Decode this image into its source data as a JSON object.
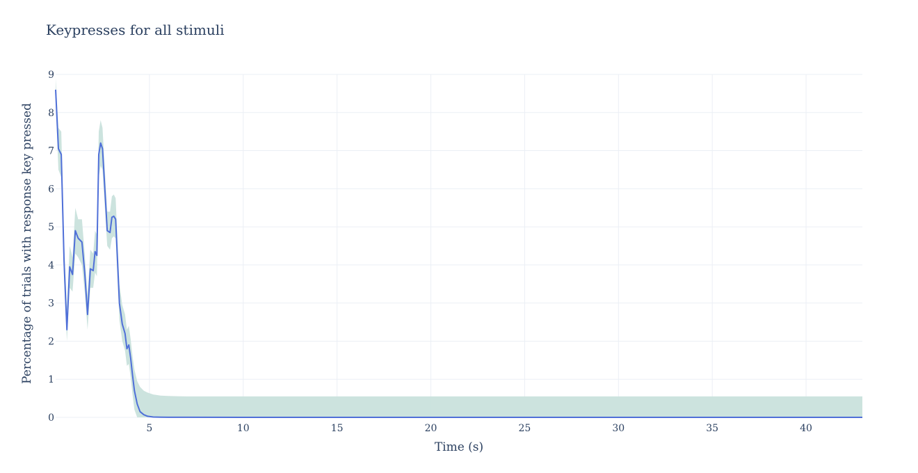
{
  "chart_data": {
    "type": "line",
    "title": "Keypresses for all stimuli",
    "xlabel": "Time (s)",
    "ylabel": "Percentage of trials with response key pressed",
    "xlim": [
      0,
      43
    ],
    "ylim": [
      0,
      9
    ],
    "xticks": [
      5,
      10,
      15,
      20,
      25,
      30,
      35,
      40
    ],
    "yticks": [
      0,
      1,
      2,
      3,
      4,
      5,
      6,
      7,
      8,
      9
    ],
    "grid": true,
    "legend": "none",
    "colors": {
      "line": "#4f6fd8",
      "band": "#c9e1dc",
      "grid": "#ebeff5",
      "text": "#2a3f5f"
    },
    "series": [
      {
        "values_x": [
          0,
          0.15,
          0.3,
          0.45,
          0.6,
          0.75,
          0.9,
          1.05,
          1.2,
          1.4,
          1.55,
          1.7,
          1.85,
          2.0,
          2.1,
          2.2,
          2.3,
          2.4,
          2.5,
          2.6,
          2.75,
          2.9,
          3.0,
          3.1,
          3.2,
          3.3,
          3.4,
          3.55,
          3.7,
          3.8,
          3.9,
          4.0,
          4.1,
          4.2,
          4.35,
          4.5,
          4.7,
          4.9,
          5.2,
          5.6,
          6.0,
          7.0,
          10,
          15,
          20,
          25,
          30,
          35,
          40,
          43
        ],
        "values_y": [
          8.6,
          7.05,
          6.9,
          4.1,
          2.3,
          3.95,
          3.75,
          4.9,
          4.7,
          4.6,
          3.8,
          2.7,
          3.9,
          3.85,
          4.35,
          4.25,
          6.9,
          7.2,
          7.05,
          6.2,
          4.9,
          4.85,
          5.25,
          5.28,
          5.2,
          4.1,
          3.0,
          2.45,
          2.2,
          1.8,
          1.9,
          1.55,
          1.1,
          0.7,
          0.35,
          0.15,
          0.07,
          0.03,
          0.01,
          0.005,
          0.002,
          0.001,
          0.0,
          0.0,
          0.0,
          0.0,
          0.0,
          0.0,
          0.0,
          0.0
        ],
        "band_upper": [
          8.9,
          7.6,
          7.5,
          4.6,
          2.9,
          4.5,
          4.2,
          5.5,
          5.2,
          5.2,
          4.3,
          3.2,
          4.4,
          4.3,
          4.9,
          4.8,
          7.5,
          7.8,
          7.6,
          6.7,
          5.4,
          5.4,
          5.8,
          5.85,
          5.75,
          4.6,
          3.5,
          2.95,
          2.7,
          2.3,
          2.4,
          2.05,
          1.6,
          1.25,
          0.95,
          0.8,
          0.7,
          0.65,
          0.6,
          0.57,
          0.56,
          0.55,
          0.55,
          0.55,
          0.55,
          0.55,
          0.55,
          0.55,
          0.55,
          0.55
        ],
        "band_lower": [
          8.3,
          6.5,
          6.3,
          3.6,
          2.0,
          3.4,
          3.3,
          4.3,
          4.2,
          4.0,
          3.3,
          2.3,
          3.4,
          3.4,
          3.8,
          3.7,
          6.3,
          6.6,
          6.5,
          5.7,
          4.5,
          4.4,
          4.7,
          4.75,
          4.7,
          3.6,
          2.55,
          2.0,
          1.75,
          1.35,
          1.4,
          1.05,
          0.6,
          0.2,
          0.0,
          0.0,
          0.0,
          0.0,
          0.0,
          0.0,
          0.0,
          0.0,
          0.0,
          0.0,
          0.0,
          0.0,
          0.0,
          0.0,
          0.0,
          0.0
        ]
      }
    ]
  }
}
